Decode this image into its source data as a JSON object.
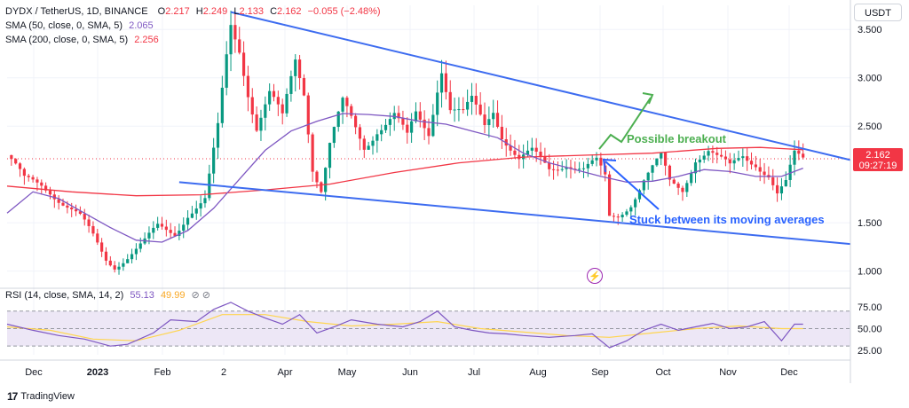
{
  "header": {
    "symbol": "DYDX / TetherUS, 1D, BINANCE",
    "open_label": "O",
    "open": "2.217",
    "high_label": "H",
    "high": "2.249",
    "low_label": "L",
    "low": "2.133",
    "close_label": "C",
    "close": "2.162",
    "change": "−0.055 (−2.48%)",
    "sma50_label": "SMA (50, close, 0, SMA, 5)",
    "sma50_value": "2.065",
    "sma200_label": "SMA (200, close, 0, SMA, 5)",
    "sma200_value": "2.256",
    "currency_button": "USDT"
  },
  "price_tag": {
    "price": "2.162",
    "countdown": "09:27:19"
  },
  "annotations": {
    "breakout": "Possible breakout",
    "stuck": "Stuck  between its moving averages"
  },
  "rsi": {
    "label": "RSI (14, close, SMA, 14, 2)",
    "value": "55.13",
    "extra": "49.99",
    "icons": "⊘ ⊘"
  },
  "branding": "TradingView",
  "colors": {
    "up": "#089981",
    "down": "#f23645",
    "sma50": "#7e57c2",
    "sma200": "#f23645",
    "trendline": "#3d6cf0",
    "annotation_green": "#4caf50",
    "annotation_blue": "#2962ff",
    "rsi_line": "#7e57c2",
    "rsi_ma": "#ffd54f",
    "rsi_band": "#ede7f6"
  },
  "chart_data": {
    "type": "candlestick",
    "x_ticks": [
      "Dec",
      "2023",
      "Feb",
      "2",
      "Apr",
      "May",
      "Jun",
      "Jul",
      "Aug",
      "Sep",
      "Oct",
      "Nov",
      "Dec"
    ],
    "y_ticks": [
      "3.500",
      "3.000",
      "2.500",
      "1.500",
      "1.000"
    ],
    "ylim": [
      0.85,
      3.75
    ],
    "rsi_ticks": [
      "75.00",
      "50.00",
      "25.00"
    ],
    "rsi_ylim": [
      20,
      85
    ],
    "last_price": 2.162,
    "price_path": [
      [
        0,
        2.2
      ],
      [
        4,
        1.92
      ],
      [
        8,
        1.9
      ],
      [
        10,
        1.85
      ],
      [
        13,
        1.72
      ],
      [
        17,
        1.55
      ],
      [
        20,
        1.35
      ],
      [
        23,
        1.12
      ],
      [
        25,
        1.05
      ],
      [
        28,
        1.15
      ],
      [
        32,
        1.3
      ],
      [
        35,
        1.45
      ],
      [
        39,
        1.4
      ],
      [
        42,
        1.6
      ],
      [
        46,
        1.72
      ],
      [
        47,
        1.95
      ],
      [
        49,
        2.45
      ],
      [
        51,
        3.2
      ],
      [
        52,
        3.55
      ],
      [
        54,
        3.35
      ],
      [
        56,
        2.9
      ],
      [
        58,
        2.5
      ],
      [
        61,
        2.8
      ],
      [
        64,
        2.55
      ],
      [
        67,
        3.2
      ],
      [
        69,
        2.9
      ],
      [
        71,
        2.1
      ],
      [
        73,
        1.85
      ],
      [
        75,
        2.3
      ],
      [
        78,
        2.7
      ],
      [
        80,
        2.55
      ],
      [
        83,
        2.3
      ],
      [
        86,
        2.5
      ],
      [
        90,
        2.6
      ],
      [
        93,
        2.35
      ],
      [
        95,
        2.6
      ],
      [
        98,
        2.45
      ],
      [
        100,
        2.95
      ],
      [
        101,
        3.15
      ],
      [
        103,
        2.7
      ],
      [
        106,
        2.6
      ],
      [
        108,
        2.72
      ],
      [
        111,
        2.5
      ],
      [
        113,
        2.7
      ],
      [
        115,
        2.45
      ],
      [
        117,
        2.3
      ],
      [
        119,
        2.15
      ],
      [
        122,
        2.2
      ],
      [
        126,
        2.05
      ],
      [
        130,
        2.15
      ],
      [
        134,
        2.05
      ],
      [
        137,
        2.1
      ],
      [
        139,
        1.95
      ],
      [
        140,
        1.55
      ],
      [
        142,
        1.58
      ],
      [
        145,
        1.72
      ],
      [
        148,
        1.95
      ],
      [
        150,
        2.05
      ],
      [
        152,
        2.15
      ],
      [
        154,
        1.9
      ],
      [
        157,
        1.85
      ],
      [
        160,
        2.2
      ],
      [
        163,
        2.25
      ],
      [
        165,
        2.15
      ],
      [
        168,
        2.05
      ],
      [
        171,
        2.2
      ],
      [
        174,
        2.15
      ],
      [
        177,
        2.0
      ],
      [
        179,
        1.78
      ],
      [
        181,
        1.88
      ],
      [
        183,
        2.18
      ],
      [
        185,
        2.16
      ]
    ],
    "sma50_path": [
      [
        0,
        1.6
      ],
      [
        6,
        1.82
      ],
      [
        12,
        1.75
      ],
      [
        18,
        1.6
      ],
      [
        24,
        1.45
      ],
      [
        30,
        1.32
      ],
      [
        36,
        1.3
      ],
      [
        42,
        1.42
      ],
      [
        48,
        1.65
      ],
      [
        54,
        1.95
      ],
      [
        60,
        2.25
      ],
      [
        66,
        2.45
      ],
      [
        72,
        2.55
      ],
      [
        78,
        2.63
      ],
      [
        84,
        2.62
      ],
      [
        90,
        2.6
      ],
      [
        96,
        2.55
      ],
      [
        102,
        2.52
      ],
      [
        108,
        2.45
      ],
      [
        114,
        2.38
      ],
      [
        120,
        2.22
      ],
      [
        126,
        2.12
      ],
      [
        132,
        2.05
      ],
      [
        138,
        1.98
      ],
      [
        144,
        1.92
      ],
      [
        150,
        1.93
      ],
      [
        156,
        1.98
      ],
      [
        162,
        2.05
      ],
      [
        168,
        2.03
      ],
      [
        174,
        1.98
      ],
      [
        180,
        1.98
      ],
      [
        185,
        2.065
      ]
    ],
    "sma200_path": [
      [
        0,
        1.88
      ],
      [
        15,
        1.82
      ],
      [
        30,
        1.78
      ],
      [
        45,
        1.79
      ],
      [
        60,
        1.84
      ],
      [
        75,
        1.9
      ],
      [
        90,
        2.02
      ],
      [
        105,
        2.12
      ],
      [
        120,
        2.18
      ],
      [
        135,
        2.2
      ],
      [
        150,
        2.22
      ],
      [
        165,
        2.27
      ],
      [
        175,
        2.28
      ],
      [
        185,
        2.256
      ]
    ],
    "rsi_path": [
      [
        0,
        55
      ],
      [
        6,
        48
      ],
      [
        12,
        42
      ],
      [
        18,
        38
      ],
      [
        24,
        30
      ],
      [
        28,
        32
      ],
      [
        34,
        45
      ],
      [
        38,
        60
      ],
      [
        44,
        58
      ],
      [
        48,
        72
      ],
      [
        52,
        80
      ],
      [
        56,
        70
      ],
      [
        60,
        62
      ],
      [
        64,
        55
      ],
      [
        68,
        66
      ],
      [
        72,
        45
      ],
      [
        76,
        52
      ],
      [
        80,
        60
      ],
      [
        86,
        55
      ],
      [
        92,
        52
      ],
      [
        96,
        58
      ],
      [
        100,
        70
      ],
      [
        104,
        52
      ],
      [
        108,
        48
      ],
      [
        112,
        45
      ],
      [
        116,
        44
      ],
      [
        120,
        42
      ],
      [
        126,
        40
      ],
      [
        132,
        42
      ],
      [
        136,
        44
      ],
      [
        140,
        28
      ],
      [
        144,
        36
      ],
      [
        148,
        48
      ],
      [
        152,
        55
      ],
      [
        156,
        48
      ],
      [
        160,
        52
      ],
      [
        164,
        56
      ],
      [
        168,
        50
      ],
      [
        172,
        52
      ],
      [
        176,
        58
      ],
      [
        180,
        36
      ],
      [
        183,
        55
      ],
      [
        185,
        55
      ]
    ],
    "rsi_ma_path": [
      [
        0,
        52
      ],
      [
        10,
        48
      ],
      [
        20,
        38
      ],
      [
        30,
        36
      ],
      [
        40,
        48
      ],
      [
        50,
        66
      ],
      [
        60,
        66
      ],
      [
        70,
        58
      ],
      [
        80,
        53
      ],
      [
        90,
        55
      ],
      [
        100,
        58
      ],
      [
        110,
        50
      ],
      [
        120,
        46
      ],
      [
        130,
        42
      ],
      [
        140,
        40
      ],
      [
        150,
        45
      ],
      [
        160,
        50
      ],
      [
        170,
        53
      ],
      [
        180,
        50
      ],
      [
        185,
        50
      ]
    ],
    "upper_trendline": [
      [
        52,
        3.68
      ],
      [
        196,
        2.15
      ]
    ],
    "lower_trendline": [
      [
        40,
        1.92
      ],
      [
        196,
        1.28
      ]
    ]
  }
}
